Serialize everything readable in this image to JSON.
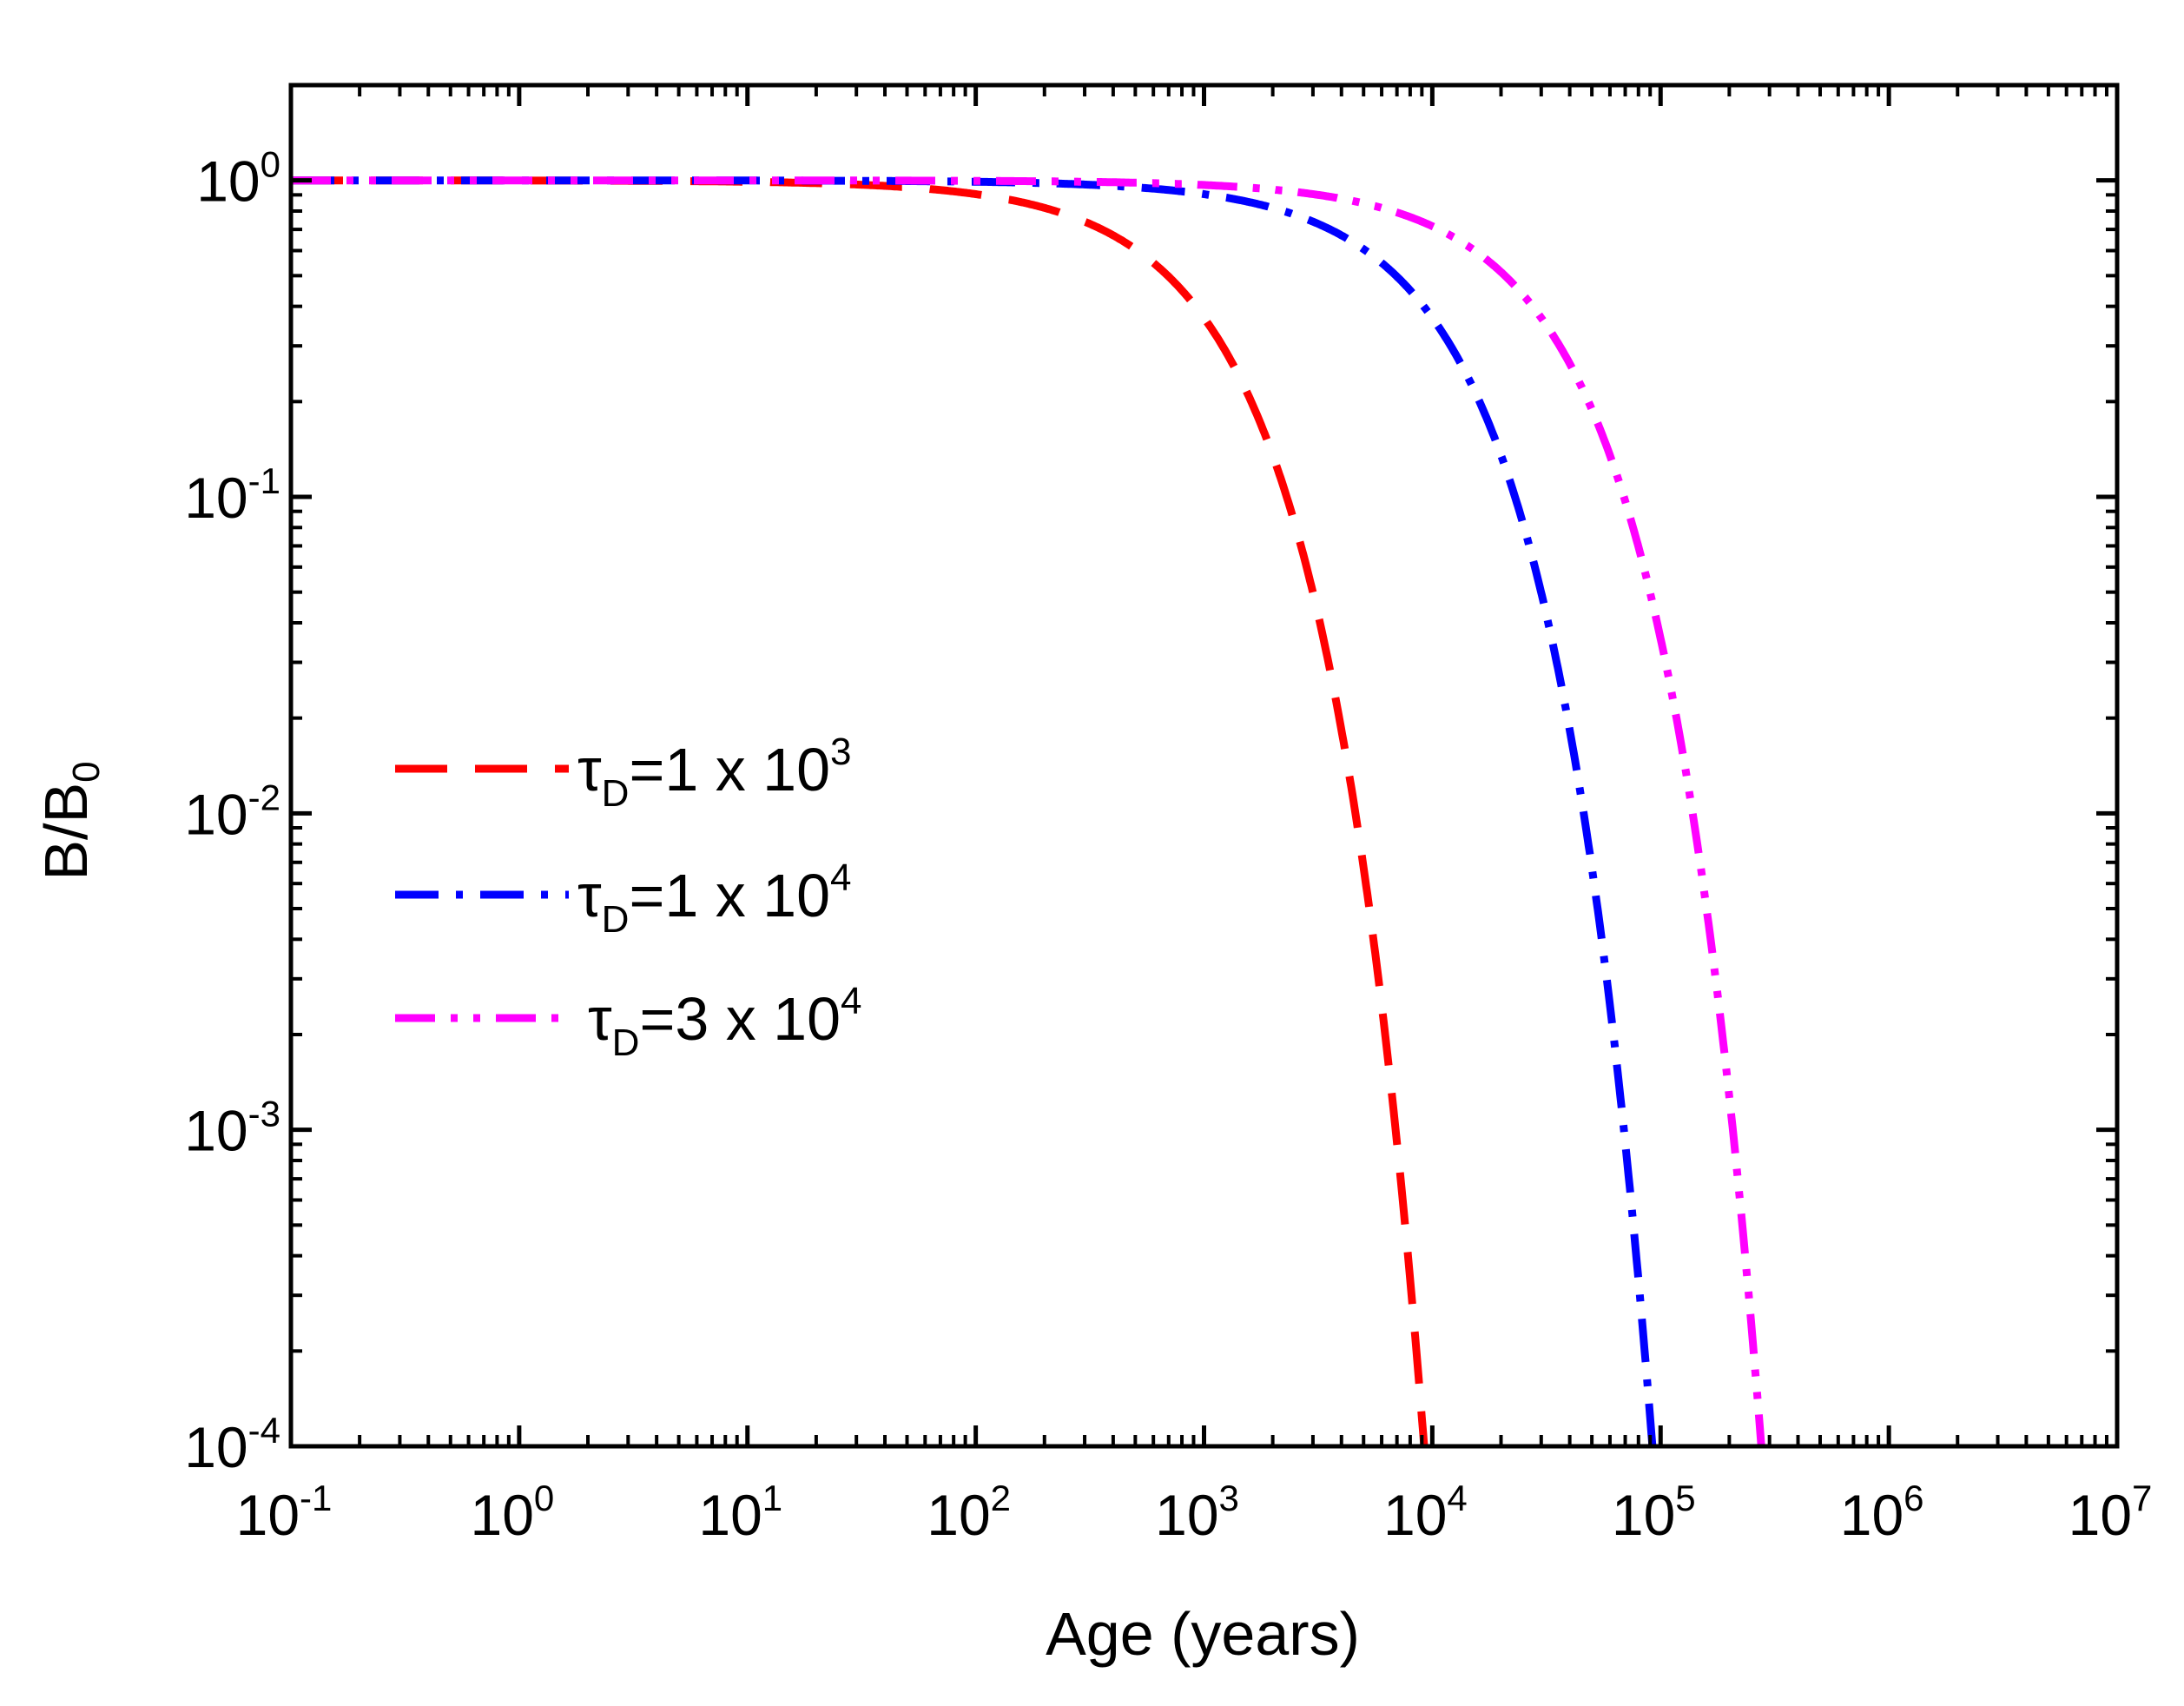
{
  "chart_data": {
    "type": "line",
    "title": "",
    "xlabel": "Age (years)",
    "ylabel": {
      "main": "B/B",
      "sub": "0"
    },
    "x_scale": "log",
    "y_scale": "log",
    "xlim": [
      0.1,
      10000000
    ],
    "ylim": [
      0.0001,
      2
    ],
    "x_ticks": [
      {
        "value": 0.1,
        "base": "10",
        "exp": "-1"
      },
      {
        "value": 1,
        "base": "10",
        "exp": "0"
      },
      {
        "value": 10,
        "base": "10",
        "exp": "1"
      },
      {
        "value": 100,
        "base": "10",
        "exp": "2"
      },
      {
        "value": 1000,
        "base": "10",
        "exp": "3"
      },
      {
        "value": 10000,
        "base": "10",
        "exp": "4"
      },
      {
        "value": 100000,
        "base": "10",
        "exp": "5"
      },
      {
        "value": 1000000,
        "base": "10",
        "exp": "6"
      },
      {
        "value": 10000000,
        "base": "10",
        "exp": "7"
      }
    ],
    "y_ticks": [
      {
        "value": 0.0001,
        "base": "10",
        "exp": "-4"
      },
      {
        "value": 0.001,
        "base": "10",
        "exp": "-3"
      },
      {
        "value": 0.01,
        "base": "10",
        "exp": "-2"
      },
      {
        "value": 0.1,
        "base": "10",
        "exp": "-1"
      },
      {
        "value": 1,
        "base": "10",
        "exp": "0"
      }
    ],
    "grid": false,
    "legend_position": "center-left",
    "model": "B/B0 = exp(-t / tau_D) with tau_D in years",
    "series": [
      {
        "name": "τD=1 x 10^3",
        "tau_d": 1000,
        "color": "#ff0000",
        "dash": "dashed",
        "legend": {
          "tau": "τ",
          "sub": "D",
          "text": "=1 x 10",
          "exp": "3"
        }
      },
      {
        "name": "τD=1 x 10^4",
        "tau_d": 10000,
        "color": "#0000ff",
        "dash": "dash-dot",
        "legend": {
          "tau": "τ",
          "sub": "D",
          "text": "=1 x 10",
          "exp": "4"
        }
      },
      {
        "name": "τD=3 x 10^4",
        "tau_d": 30000,
        "color": "#ff00ff",
        "dash": "dash-dot-dot",
        "legend": {
          "tau": "τ",
          "sub": "D",
          "text": "=3 x 10",
          "exp": "4"
        }
      }
    ]
  }
}
